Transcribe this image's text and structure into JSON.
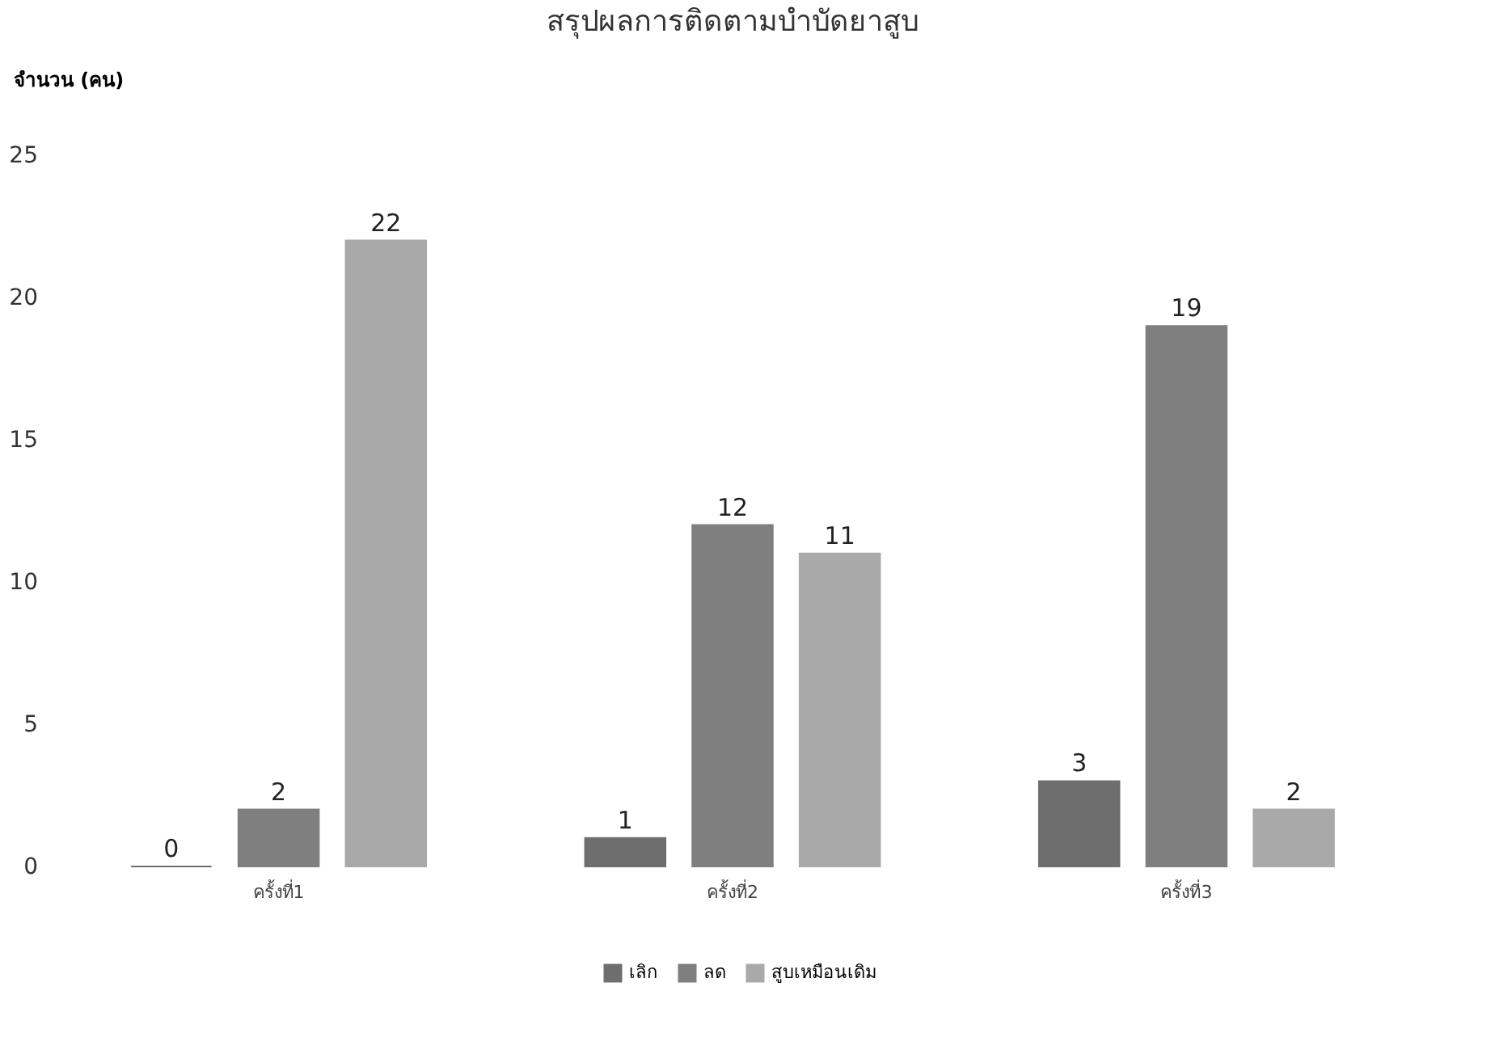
{
  "chart_data": {
    "type": "bar",
    "title": "สรุปผลการติดตามบำบัดยาสูบ",
    "ylabel": "จำนวน (คน)",
    "categories": [
      "ครั้งที่1",
      "ครั้งที่2",
      "ครั้งที่3"
    ],
    "series": [
      {
        "name": "เลิก",
        "color": "#6e6e6e",
        "values": [
          0,
          1,
          3
        ]
      },
      {
        "name": "ลด",
        "color": "#7f7f7f",
        "values": [
          2,
          12,
          19
        ]
      },
      {
        "name": "สูบเหมือนเดิม",
        "color": "#a9a9a9",
        "values": [
          22,
          11,
          2
        ]
      }
    ],
    "ylim": [
      0,
      25
    ],
    "yticks": [
      0,
      5,
      10,
      15,
      20,
      25
    ],
    "grid": false,
    "legend": "bottom",
    "data_labels": true
  }
}
